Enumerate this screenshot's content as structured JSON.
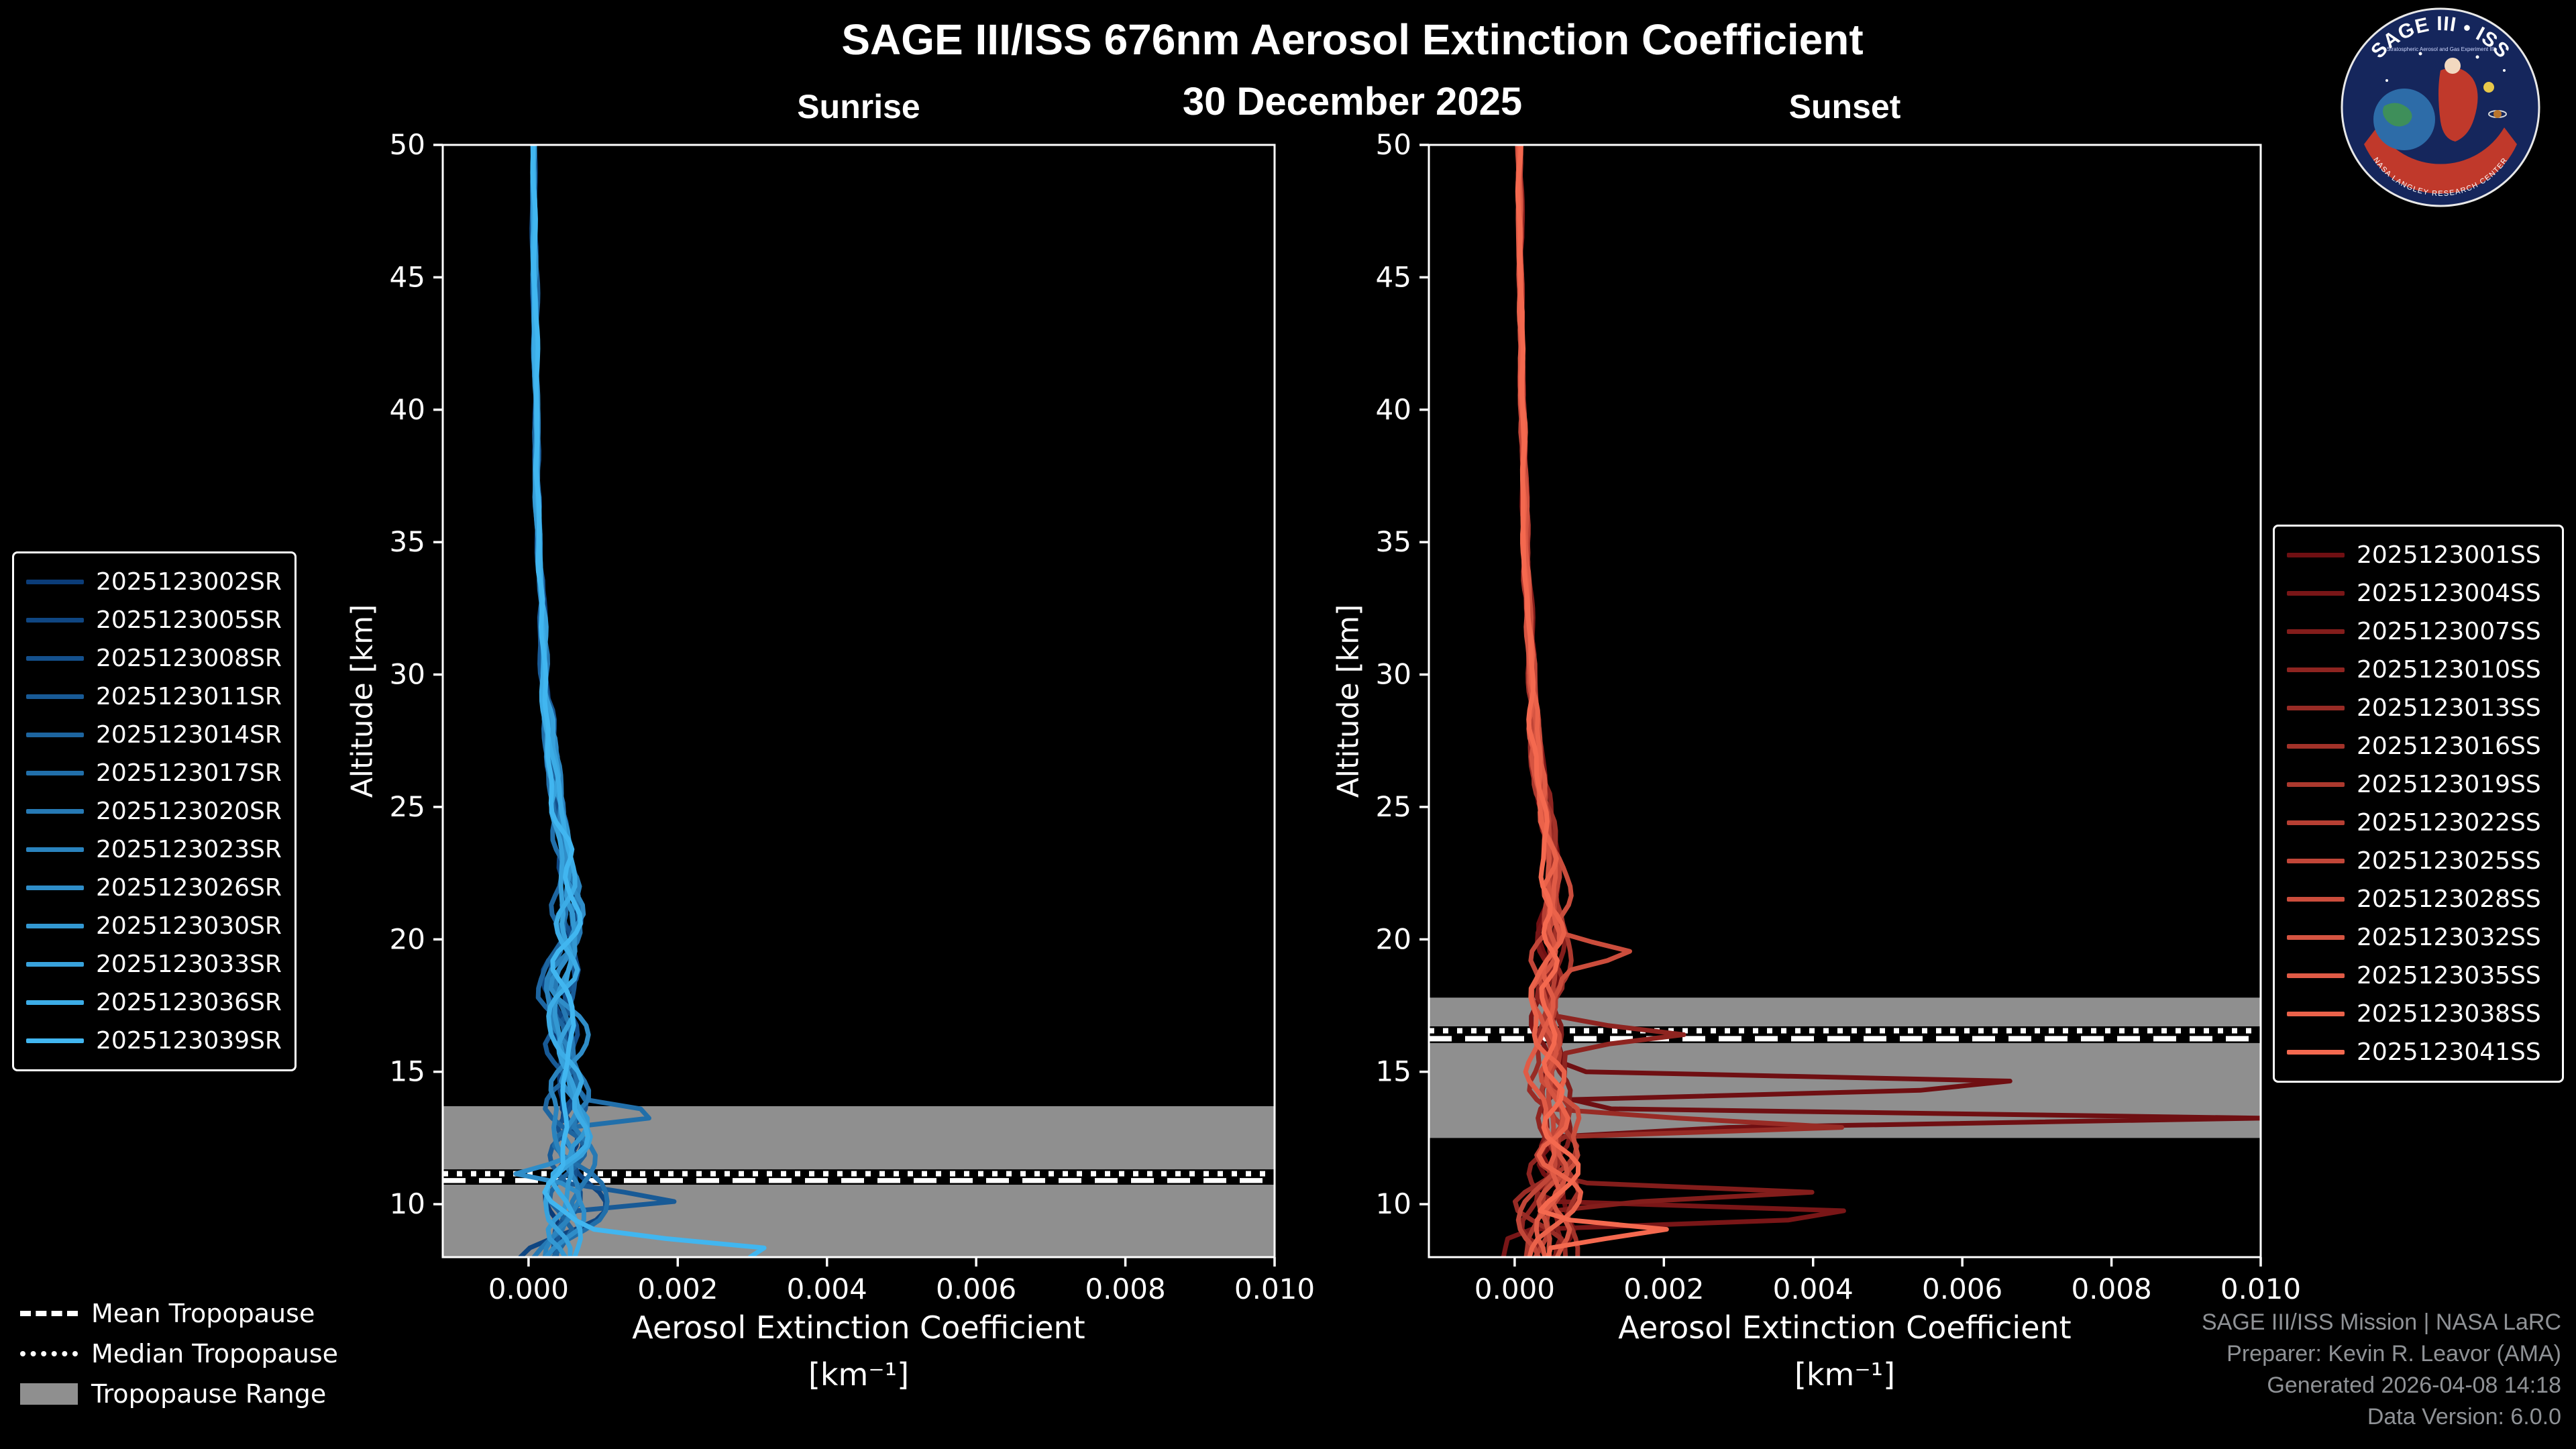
{
  "title": "SAGE III/ISS 676nm Aerosol Extinction Coefficient",
  "subtitle": "30 December 2025",
  "logo": {
    "title": "SAGE III • ISS",
    "subtitle": "Stratospheric Aerosol and Gas Experiment III",
    "ring_text": "NASA LANGLEY RESEARCH CENTER"
  },
  "credits": [
    "SAGE III/ISS Mission | NASA LaRC",
    "Preparer: Kevin R. Leavor (AMA)",
    "Generated 2026-04-08 14:18",
    "Data Version: 6.0.0"
  ],
  "tropopause_legend": [
    {
      "label": "Mean Tropopause",
      "style": "dashed"
    },
    {
      "label": "Median Tropopause",
      "style": "dotted"
    },
    {
      "label": "Tropopause Range",
      "style": "band"
    }
  ],
  "chart_data": [
    {
      "type": "line",
      "panel": "sunrise",
      "title": "Sunrise",
      "xlabel": "Aerosol Extinction Coefficient",
      "xlabel_units": "[km⁻¹]",
      "ylabel": "Altitude [km]",
      "xlim": [
        -0.00115,
        0.01
      ],
      "ylim": [
        8,
        50
      ],
      "xticks": [
        0.0,
        0.002,
        0.004,
        0.006,
        0.008,
        0.01
      ],
      "yticks": [
        10,
        15,
        20,
        25,
        30,
        35,
        40,
        45,
        50
      ],
      "band_color": "#8f8f8f",
      "tropopause": {
        "mean": 10.9,
        "median": 11.15,
        "range": [
          7.5,
          13.7
        ]
      },
      "base_profile": [
        [
          8,
          0.00035
        ],
        [
          9,
          0.0004
        ],
        [
          10,
          0.00045
        ],
        [
          11,
          0.0005
        ],
        [
          12,
          0.00055
        ],
        [
          13,
          0.0005
        ],
        [
          14,
          0.00055
        ],
        [
          15,
          0.0005
        ],
        [
          16,
          0.00045
        ],
        [
          17,
          0.00045
        ],
        [
          18,
          0.0004
        ],
        [
          19,
          0.00045
        ],
        [
          20,
          0.0005
        ],
        [
          21,
          0.00055
        ],
        [
          22,
          0.00055
        ],
        [
          23,
          0.0005
        ],
        [
          24,
          0.00045
        ],
        [
          26,
          0.00035
        ],
        [
          28,
          0.00028
        ],
        [
          30,
          0.00022
        ],
        [
          33,
          0.00017
        ],
        [
          36,
          0.00013
        ],
        [
          40,
          0.0001
        ],
        [
          45,
          8e-05
        ],
        [
          50,
          6e-05
        ]
      ],
      "noise_amp": [
        [
          8,
          0.00048
        ],
        [
          11,
          0.00045
        ],
        [
          13,
          0.00035
        ],
        [
          16,
          0.0003
        ],
        [
          19,
          0.00025
        ],
        [
          22,
          0.00018
        ],
        [
          26,
          0.0001
        ],
        [
          30,
          6e-05
        ],
        [
          35,
          4e-05
        ],
        [
          50,
          2.5e-05
        ]
      ],
      "series": [
        {
          "name": "2025123002SR",
          "color": "#0b3c78",
          "seed": 101,
          "spikes": []
        },
        {
          "name": "2025123005SR",
          "color": "#0f4682",
          "seed": 102,
          "spikes": []
        },
        {
          "name": "2025123008SR",
          "color": "#14508c",
          "seed": 103,
          "spikes": []
        },
        {
          "name": "2025123011SR",
          "color": "#185a96",
          "seed": 104,
          "spikes": [
            [
              10.2,
              0.0016,
              0.4
            ]
          ]
        },
        {
          "name": "2025123014SR",
          "color": "#1d65a0",
          "seed": 105,
          "spikes": []
        },
        {
          "name": "2025123017SR",
          "color": "#216faa",
          "seed": 106,
          "spikes": [
            [
              13.4,
              0.0013,
              0.4
            ]
          ]
        },
        {
          "name": "2025123020SR",
          "color": "#2679b4",
          "seed": 107,
          "spikes": []
        },
        {
          "name": "2025123023SR",
          "color": "#2a83be",
          "seed": 108,
          "spikes": []
        },
        {
          "name": "2025123026SR",
          "color": "#2f8dc8",
          "seed": 109,
          "spikes": [
            [
              11.2,
              -0.0009,
              0.5
            ]
          ]
        },
        {
          "name": "2025123030SR",
          "color": "#3398d2",
          "seed": 110,
          "spikes": []
        },
        {
          "name": "2025123033SR",
          "color": "#38a2dc",
          "seed": 111,
          "spikes": []
        },
        {
          "name": "2025123036SR",
          "color": "#3cace6",
          "seed": 112,
          "spikes": []
        },
        {
          "name": "2025123039SR",
          "color": "#41b6f0",
          "seed": 113,
          "spikes": [
            [
              8.2,
              0.003,
              0.8
            ]
          ]
        }
      ]
    },
    {
      "type": "line",
      "panel": "sunset",
      "title": "Sunset",
      "xlabel": "Aerosol Extinction Coefficient",
      "xlabel_units": "[km⁻¹]",
      "ylabel": "Altitude [km]",
      "xlim": [
        -0.00115,
        0.01
      ],
      "ylim": [
        8,
        50
      ],
      "xticks": [
        0.0,
        0.002,
        0.004,
        0.006,
        0.008,
        0.01
      ],
      "yticks": [
        10,
        15,
        20,
        25,
        30,
        35,
        40,
        45,
        50
      ],
      "band_color": "#8f8f8f",
      "tropopause": {
        "mean": 16.25,
        "median": 16.55,
        "range": [
          12.5,
          17.8
        ]
      },
      "base_profile": [
        [
          8,
          0.00035
        ],
        [
          9,
          0.0004
        ],
        [
          10,
          0.00045
        ],
        [
          11,
          0.0005
        ],
        [
          12,
          0.0005
        ],
        [
          13,
          0.00055
        ],
        [
          14,
          0.0005
        ],
        [
          15,
          0.00045
        ],
        [
          16,
          0.0005
        ],
        [
          17,
          0.00045
        ],
        [
          18,
          0.0004
        ],
        [
          19,
          0.0005
        ],
        [
          20,
          0.00055
        ],
        [
          21,
          0.00055
        ],
        [
          22,
          0.0005
        ],
        [
          23,
          0.0005
        ],
        [
          24,
          0.00045
        ],
        [
          26,
          0.00035
        ],
        [
          28,
          0.00028
        ],
        [
          30,
          0.00022
        ],
        [
          33,
          0.00017
        ],
        [
          36,
          0.00013
        ],
        [
          40,
          0.0001
        ],
        [
          45,
          8e-05
        ],
        [
          50,
          6e-05
        ]
      ],
      "noise_amp": [
        [
          8,
          0.00048
        ],
        [
          11,
          0.00045
        ],
        [
          13,
          0.00035
        ],
        [
          16,
          0.0003
        ],
        [
          19,
          0.00025
        ],
        [
          22,
          0.00018
        ],
        [
          26,
          0.0001
        ],
        [
          30,
          6e-05
        ],
        [
          35,
          4e-05
        ],
        [
          50,
          2.5e-05
        ]
      ],
      "series": [
        {
          "name": "2025123001SS",
          "color": "#6f0f12",
          "seed": 201,
          "spikes": [
            [
              14.5,
              0.008,
              0.4
            ],
            [
              13.2,
              0.0098,
              0.35
            ]
          ]
        },
        {
          "name": "2025123004SS",
          "color": "#791617",
          "seed": 202,
          "spikes": [
            [
              9.6,
              0.0055,
              0.45
            ]
          ]
        },
        {
          "name": "2025123007SS",
          "color": "#831d1b",
          "seed": 203,
          "spikes": [
            [
              10.4,
              0.0036,
              0.4
            ]
          ]
        },
        {
          "name": "2025123010SS",
          "color": "#8e2420",
          "seed": 204,
          "spikes": [
            [
              16.4,
              0.0016,
              0.5
            ]
          ]
        },
        {
          "name": "2025123013SS",
          "color": "#982b25",
          "seed": 205,
          "spikes": [
            [
              13.0,
              0.0045,
              0.35
            ]
          ]
        },
        {
          "name": "2025123016SS",
          "color": "#a23229",
          "seed": 206,
          "spikes": []
        },
        {
          "name": "2025123019SS",
          "color": "#ac392e",
          "seed": 207,
          "spikes": []
        },
        {
          "name": "2025123022SS",
          "color": "#b73f33",
          "seed": 208,
          "spikes": []
        },
        {
          "name": "2025123025SS",
          "color": "#c14638",
          "seed": 209,
          "spikes": []
        },
        {
          "name": "2025123028SS",
          "color": "#cb4d3c",
          "seed": 210,
          "spikes": [
            [
              19.5,
              0.0011,
              0.7
            ]
          ]
        },
        {
          "name": "2025123032SS",
          "color": "#d55441",
          "seed": 211,
          "spikes": []
        },
        {
          "name": "2025123035SS",
          "color": "#e05b46",
          "seed": 212,
          "spikes": []
        },
        {
          "name": "2025123038SS",
          "color": "#ea624a",
          "seed": 213,
          "spikes": []
        },
        {
          "name": "2025123041SS",
          "color": "#f4694f",
          "seed": 214,
          "spikes": [
            [
              9.0,
              0.0018,
              0.5
            ]
          ]
        }
      ]
    }
  ]
}
